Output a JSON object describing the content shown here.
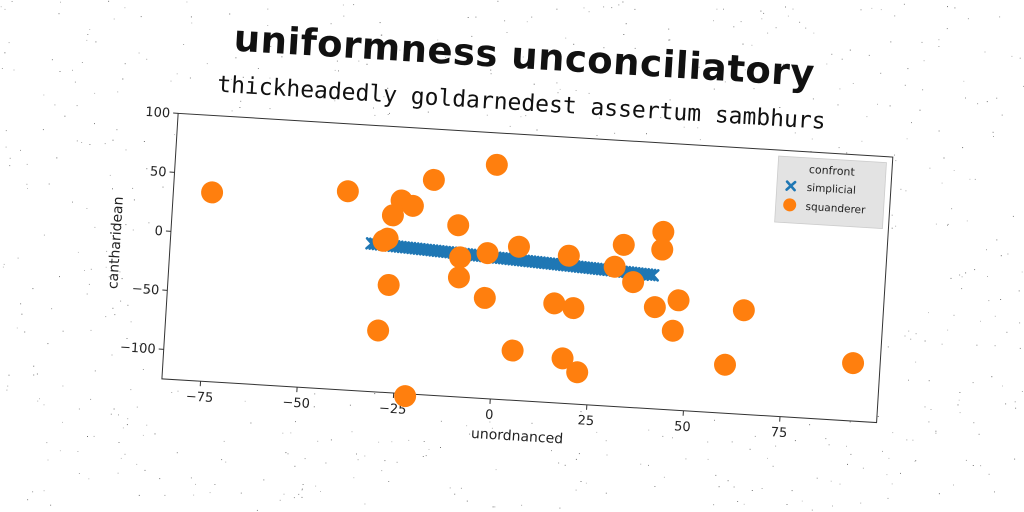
{
  "chart_data": {
    "type": "scatter",
    "title": "uniformness unconciliatory",
    "subtitle": "thickheadedly goldarnedest assertum sambhurs",
    "xlabel": "unordnanced",
    "ylabel": "cantharidean",
    "xlim": [
      -85,
      100
    ],
    "ylim": [
      -125,
      100
    ],
    "xticks": [
      -75,
      -50,
      -25,
      0,
      25,
      50,
      75
    ],
    "yticks": [
      -100,
      -50,
      0,
      50,
      100
    ],
    "grid": false,
    "legend": {
      "title": "confront",
      "placement": "top-right",
      "entries": [
        "simplicial",
        "squanderer"
      ]
    },
    "series": [
      {
        "name": "simplicial",
        "marker": "x",
        "color": "#1f77b4",
        "line": {
          "x_start": -33,
          "x_end": 40,
          "y_start": 0,
          "y_end": -12,
          "count": 90
        }
      },
      {
        "name": "squanderer",
        "marker": "o",
        "color": "#ff7f0e",
        "points": [
          [
            -75,
            35
          ],
          [
            -40,
            43
          ],
          [
            -26,
            38
          ],
          [
            -23,
            34
          ],
          [
            -18,
            57
          ],
          [
            -28,
            25
          ],
          [
            -29,
            5
          ],
          [
            -30,
            3
          ],
          [
            -2,
            73
          ],
          [
            -11,
            20
          ],
          [
            -10,
            -7
          ],
          [
            -10,
            -24
          ],
          [
            -3,
            -2
          ],
          [
            5,
            5
          ],
          [
            -3,
            -40
          ],
          [
            5,
            -83
          ],
          [
            18,
            0
          ],
          [
            18,
            -87
          ],
          [
            22,
            -98
          ],
          [
            20,
            -44
          ],
          [
            15,
            -41
          ],
          [
            30,
            -7
          ],
          [
            32,
            12
          ],
          [
            35,
            -19
          ],
          [
            42,
            25
          ],
          [
            42,
            10
          ],
          [
            41,
            -39
          ],
          [
            47,
            -32
          ],
          [
            46,
            -58
          ],
          [
            64,
            -37
          ],
          [
            60,
            -84
          ],
          [
            93,
            -76
          ],
          [
            -28,
            -34
          ],
          [
            -30,
            -73
          ],
          [
            -22,
            -127
          ]
        ]
      }
    ]
  }
}
